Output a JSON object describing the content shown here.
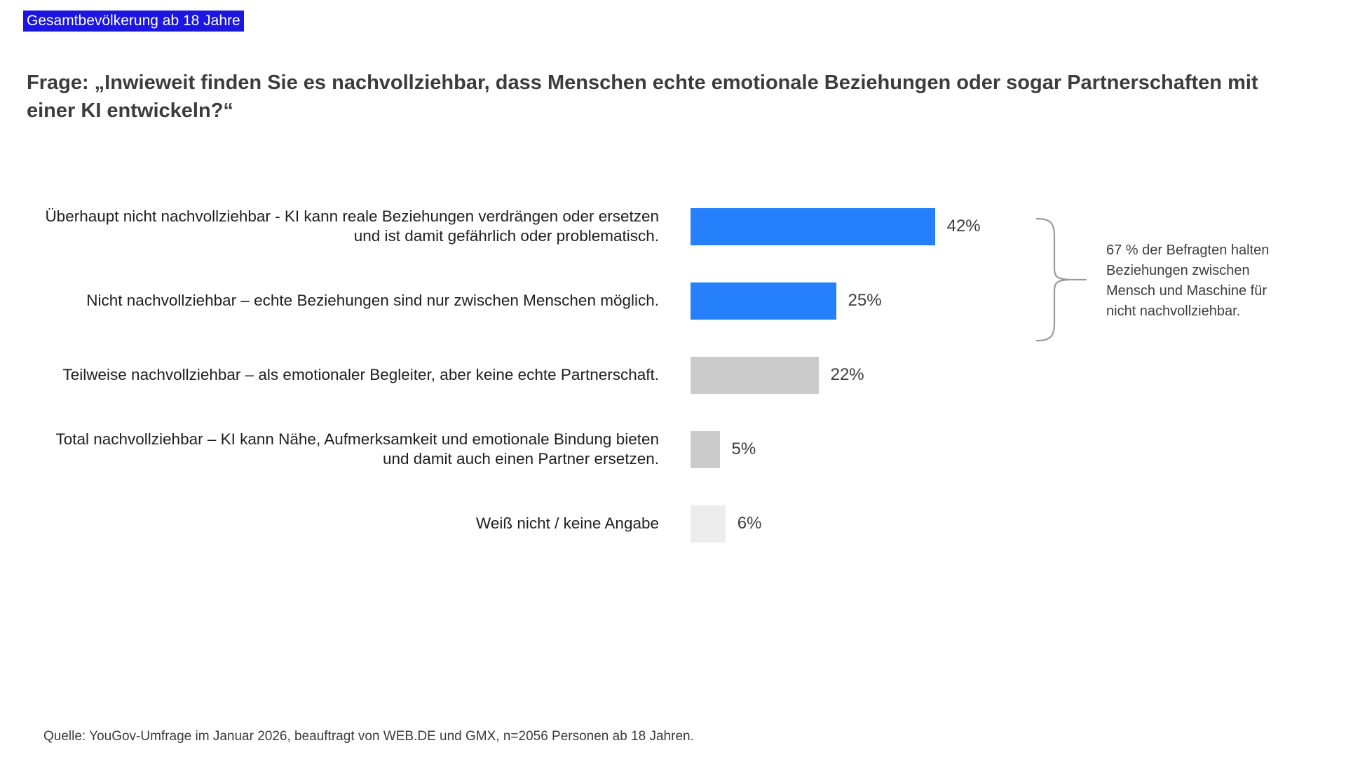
{
  "page": {
    "population_tag": "Gesamtbevölkerung ab 18 Jahre",
    "title": "Frage: „Inwieweit finden Sie es nachvollziehbar, dass Menschen echte emotionale Beziehungen oder sogar Partnerschaften mit einer KI entwickeln?“",
    "source": "Quelle: YouGov-Umfrage im Januar 2026, beauftragt von WEB.DE und GMX, n=2056 Personen ab 18 Jahren."
  },
  "annotation": {
    "text": "67 % der Befragten halten Beziehungen zwischen Mensch und Maschine für nicht nachvollziehbar."
  },
  "colors": {
    "bar_blue": "#2680FB",
    "bar_gray": "#CBCBCB",
    "bar_light_gray": "#ECECEC",
    "highlight_bg": "#1B16E2",
    "brace_stroke": "#9A9A9A",
    "title_text": "#3C3C3C"
  },
  "chart_data": {
    "type": "bar",
    "orientation": "horizontal",
    "unit": "%",
    "title": "Frage: „Inwieweit finden Sie es nachvollziehbar, dass Menschen echte emotionale Beziehungen oder sogar Partnerschaften mit einer KI entwickeln?“",
    "categories": [
      "Überhaupt nicht nachvollziehbar - KI kann reale Beziehungen verdrängen oder ersetzen und ist damit gefährlich oder problematisch.",
      "Nicht nachvollziehbar – echte Beziehungen sind nur zwischen Menschen möglich.",
      "Teilweise nachvollziehbar – als emotionaler Begleiter, aber keine echte Partnerschaft.",
      "Total nachvollziehbar – KI kann Nähe, Aufmerksamkeit und emotionale Bindung bieten und damit auch einen Partner ersetzen.",
      "Weiß nicht / keine Angabe"
    ],
    "values": [
      42,
      25,
      22,
      5,
      6
    ],
    "value_labels": [
      "42%",
      "25%",
      "22%",
      "5%",
      "6%"
    ],
    "bar_colors": [
      "bar_blue",
      "bar_blue",
      "bar_gray",
      "bar_gray",
      "bar_light_gray"
    ],
    "xlim": [
      0,
      50
    ],
    "grid": false,
    "legend": false,
    "annotation_bracket": {
      "covers_categories": [
        0,
        1
      ],
      "sum_value": 67,
      "text": "67 % der Befragten halten Beziehungen zwischen Mensch und Maschine für nicht nachvollziehbar."
    }
  }
}
